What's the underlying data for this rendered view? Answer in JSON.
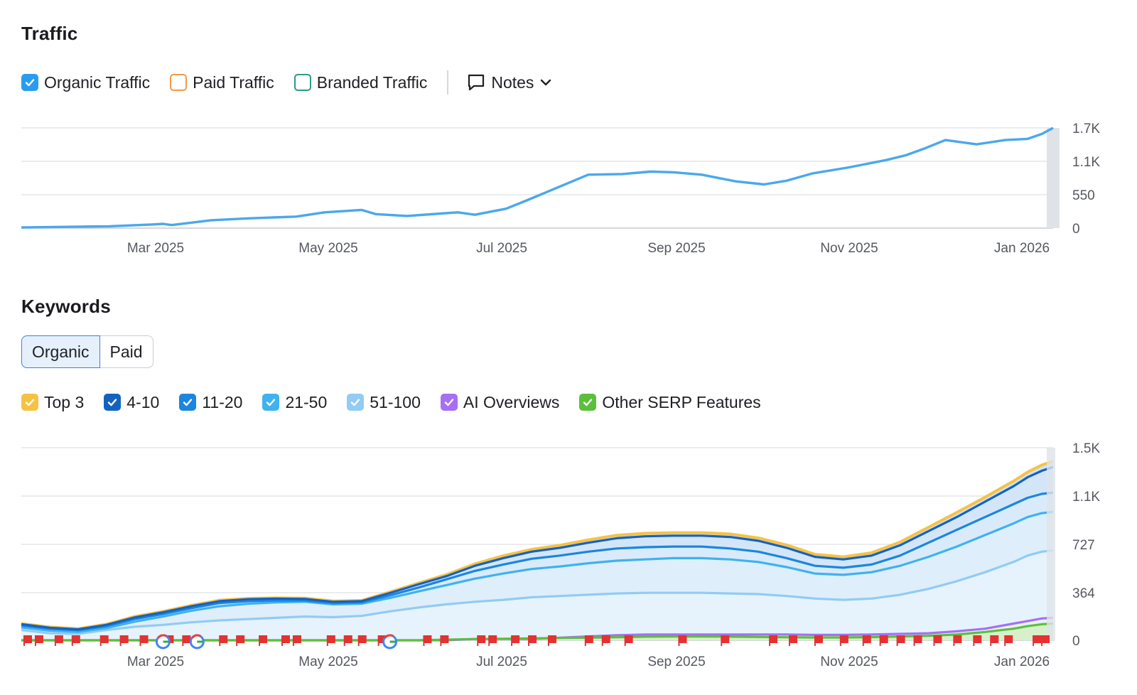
{
  "traffic": {
    "title": "Traffic",
    "legend": {
      "organic": "Organic Traffic",
      "paid": "Paid Traffic",
      "branded": "Branded Traffic"
    },
    "notes_label": "Notes"
  },
  "keywords": {
    "title": "Keywords",
    "tabs": {
      "organic": "Organic",
      "paid": "Paid"
    },
    "legend": {
      "top3": "Top 3",
      "r4_10": "4-10",
      "r11_20": "11-20",
      "r21_50": "21-50",
      "r51_100": "51-100",
      "ai": "AI Overviews",
      "serp": "Other SERP Features"
    }
  },
  "colors": {
    "organic": "#4aa8ec",
    "paid": "#f29a4a",
    "branded": "#2a9a8a",
    "top3": "#f6c244",
    "r4_10": "#1462c0",
    "r11_20": "#1b86e0",
    "r21_50": "#3fb2f0",
    "r51_100": "#92cbf4",
    "ai": "#a76ff2",
    "serp": "#5cbf3b",
    "flag": "#e43131"
  },
  "chart_data": [
    {
      "type": "line",
      "title": "Traffic",
      "x_ticks": [
        "Mar 2025",
        "May 2025",
        "Jul 2025",
        "Sep 2025",
        "Nov 2025",
        "Jan 2026"
      ],
      "y_ticks": [
        "1.7K",
        "1.1K",
        "550",
        "0"
      ],
      "ylim": [
        0,
        1650
      ],
      "x": [
        0,
        14,
        31,
        46,
        50,
        53,
        67,
        80,
        97,
        107,
        120,
        125,
        136,
        154,
        160,
        171,
        178,
        200,
        212,
        222,
        230,
        240,
        252,
        262,
        270,
        279,
        292,
        305,
        312,
        318,
        326,
        337,
        347,
        355,
        360,
        364
      ],
      "series": [
        {
          "name": "Organic Traffic",
          "values": [
            10,
            20,
            30,
            60,
            70,
            50,
            130,
            160,
            190,
            260,
            300,
            230,
            200,
            260,
            220,
            320,
            450,
            880,
            890,
            930,
            920,
            880,
            770,
            720,
            780,
            900,
            1000,
            1120,
            1200,
            1300,
            1450,
            1380,
            1450,
            1470,
            1550,
            1650
          ]
        }
      ]
    },
    {
      "type": "area",
      "title": "Keywords",
      "x_ticks": [
        "Mar 2025",
        "May 2025",
        "Jul 2025",
        "Sep 2025",
        "Nov 2025",
        "Jan 2026"
      ],
      "y_ticks": [
        "1.5K",
        "1.1K",
        "727",
        "364",
        "0"
      ],
      "ylim": [
        0,
        1500
      ],
      "x": [
        0,
        10,
        20,
        30,
        40,
        50,
        60,
        70,
        80,
        90,
        100,
        110,
        120,
        130,
        140,
        150,
        160,
        170,
        180,
        190,
        200,
        210,
        220,
        230,
        240,
        250,
        260,
        270,
        280,
        290,
        300,
        310,
        320,
        330,
        340,
        350,
        355,
        360,
        364
      ],
      "series": [
        {
          "name": "51-100",
          "values": [
            80,
            55,
            50,
            80,
            105,
            120,
            140,
            155,
            165,
            175,
            185,
            180,
            190,
            225,
            255,
            280,
            300,
            315,
            335,
            345,
            355,
            365,
            370,
            370,
            370,
            365,
            360,
            345,
            325,
            315,
            325,
            355,
            400,
            460,
            530,
            610,
            660,
            690,
            700
          ]
        },
        {
          "name": "21-50",
          "values": [
            100,
            75,
            65,
            95,
            145,
            185,
            230,
            265,
            285,
            295,
            300,
            280,
            285,
            330,
            380,
            430,
            480,
            520,
            555,
            575,
            600,
            620,
            630,
            640,
            640,
            630,
            610,
            570,
            520,
            510,
            530,
            580,
            650,
            730,
            820,
            910,
            960,
            990,
            1000
          ]
        },
        {
          "name": "11-20",
          "values": [
            115,
            90,
            78,
            110,
            165,
            205,
            250,
            290,
            305,
            310,
            310,
            290,
            295,
            350,
            410,
            475,
            540,
            590,
            635,
            660,
            690,
            715,
            725,
            730,
            730,
            715,
            690,
            640,
            580,
            565,
            590,
            660,
            760,
            860,
            960,
            1060,
            1110,
            1140,
            1150
          ]
        },
        {
          "name": "4-10",
          "values": [
            125,
            98,
            85,
            120,
            178,
            218,
            265,
            305,
            320,
            325,
            322,
            300,
            305,
            368,
            435,
            500,
            580,
            640,
            690,
            720,
            760,
            795,
            810,
            815,
            815,
            805,
            775,
            720,
            650,
            630,
            660,
            740,
            850,
            960,
            1080,
            1200,
            1270,
            1320,
            1350
          ]
        },
        {
          "name": "Top 3",
          "values": [
            130,
            103,
            90,
            125,
            185,
            225,
            272,
            312,
            326,
            330,
            328,
            306,
            310,
            376,
            445,
            512,
            595,
            658,
            708,
            740,
            782,
            818,
            833,
            838,
            838,
            828,
            797,
            742,
            670,
            650,
            682,
            765,
            880,
            995,
            1115,
            1240,
            1310,
            1365,
            1395
          ]
        },
        {
          "name": "AI Overviews",
          "values": [
            0,
            0,
            0,
            0,
            0,
            0,
            0,
            0,
            0,
            0,
            0,
            0,
            0,
            0,
            0,
            0,
            10,
            10,
            10,
            20,
            30,
            40,
            45,
            45,
            45,
            45,
            45,
            45,
            42,
            42,
            45,
            50,
            55,
            70,
            90,
            130,
            150,
            170,
            175
          ]
        },
        {
          "name": "Other SERP Features",
          "values": [
            0,
            0,
            0,
            0,
            0,
            0,
            0,
            0,
            0,
            0,
            0,
            0,
            0,
            0,
            0,
            5,
            10,
            12,
            15,
            18,
            20,
            24,
            28,
            30,
            30,
            28,
            26,
            24,
            22,
            22,
            25,
            30,
            35,
            45,
            65,
            90,
            110,
            125,
            130
          ]
        }
      ],
      "annotation_flags_at_x": [
        1,
        5,
        12,
        18,
        28,
        35,
        42,
        51,
        57,
        70,
        76,
        84,
        92,
        96,
        108,
        114,
        119,
        126,
        142,
        148,
        161,
        165,
        173,
        179,
        186,
        199,
        205,
        213,
        232,
        247,
        264,
        271,
        280,
        289,
        297,
        303,
        309,
        315,
        322,
        329,
        336,
        342,
        347,
        357,
        360
      ],
      "google_updates_at_x": [
        50,
        62,
        130
      ]
    }
  ]
}
